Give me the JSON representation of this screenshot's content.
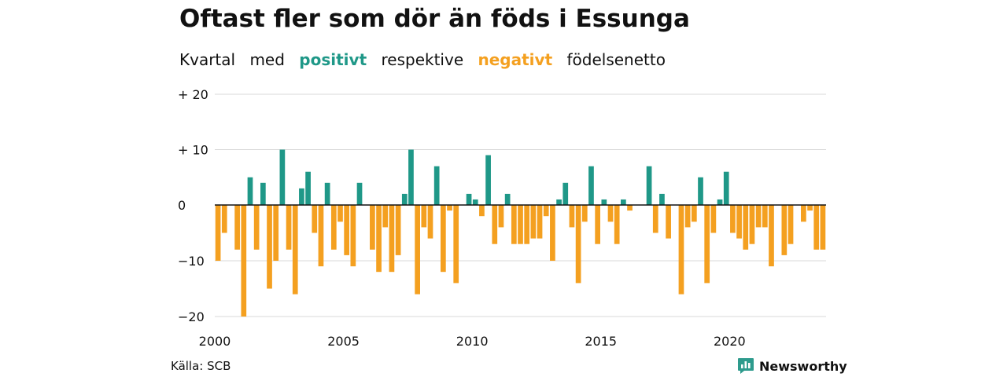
{
  "header": {
    "title": "Oftast fler som dör än föds i Essunga",
    "subtitle_pre": "Kvartal",
    "subtitle_w2": "med",
    "subtitle_pos": "positivt",
    "subtitle_mid": "respektive",
    "subtitle_neg": "negativt",
    "subtitle_post": "födelsenetto"
  },
  "footer": {
    "source": "Källa: SCB",
    "brand": "Newsworthy"
  },
  "colors": {
    "positive": "#1f9888",
    "negative": "#f4a020",
    "grid": "#d8d8d8",
    "zero_line": "#111111",
    "text": "#111111",
    "brand_icon": "#2e9b8d"
  },
  "chart_data": {
    "type": "bar",
    "x_start": "2000-Q1",
    "x_ticks": [
      "2000",
      "2005",
      "2010",
      "2015",
      "2020"
    ],
    "y_ticks": [
      "+ 20",
      "+ 10",
      "0",
      "−10",
      "−20"
    ],
    "y_tick_values": [
      20,
      10,
      0,
      -10,
      -20
    ],
    "ylim": [
      -20,
      20
    ],
    "grid": true,
    "values": [
      -10,
      -5,
      0,
      -8,
      -20,
      5,
      -8,
      4,
      -15,
      -10,
      10,
      -8,
      -16,
      3,
      6,
      -5,
      -11,
      4,
      -8,
      -3,
      -9,
      -11,
      4,
      0,
      -8,
      -12,
      -4,
      -12,
      -9,
      2,
      10,
      -16,
      -4,
      -6,
      7,
      -12,
      -1,
      -14,
      0,
      2,
      1,
      -2,
      9,
      -7,
      -4,
      2,
      -7,
      -7,
      -7,
      -6,
      -6,
      -2,
      -10,
      1,
      4,
      -4,
      -14,
      -3,
      7,
      -7,
      1,
      -3,
      -7,
      1,
      -1,
      0,
      0,
      7,
      -5,
      2,
      -6,
      0,
      -16,
      -4,
      -3,
      5,
      -14,
      -5,
      1,
      6,
      -5,
      -6,
      -8,
      -7,
      -4,
      -4,
      -11,
      0,
      -9,
      -7,
      0,
      -3,
      -1,
      -8,
      -8
    ]
  }
}
